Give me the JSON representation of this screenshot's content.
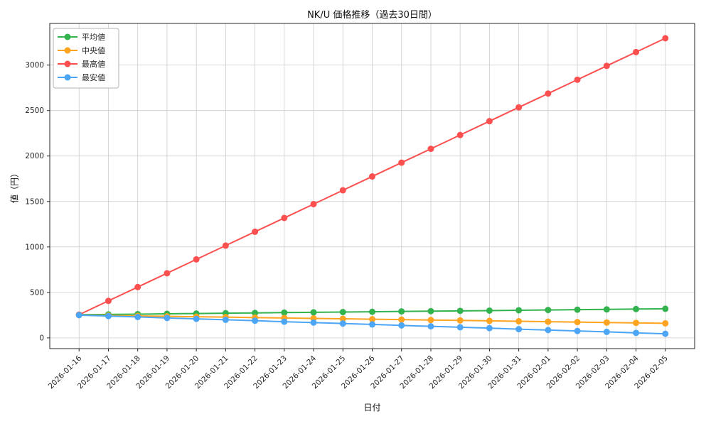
{
  "chart_data": {
    "type": "line",
    "title": "NK/U 価格推移（過去30日間）",
    "xlabel": "日付",
    "ylabel": "値（円）",
    "grid": true,
    "legend_position": "upper-left",
    "background": "#ffffff",
    "ylim": [
      -118,
      3458
    ],
    "yticks": [
      0,
      500,
      1000,
      1500,
      2000,
      2500,
      3000
    ],
    "categories": [
      "2026-01-16",
      "2026-01-17",
      "2026-01-18",
      "2026-01-19",
      "2026-01-20",
      "2026-01-21",
      "2026-01-22",
      "2026-01-23",
      "2026-01-24",
      "2026-01-25",
      "2026-01-26",
      "2026-01-27",
      "2026-01-28",
      "2026-01-29",
      "2026-01-30",
      "2026-01-31",
      "2026-02-01",
      "2026-02-02",
      "2026-02-03",
      "2026-02-04",
      "2026-02-05"
    ],
    "series": [
      {
        "name": "平均値",
        "color": "#33b34e",
        "values": [
          255,
          258,
          261,
          265,
          268,
          271,
          274,
          278,
          281,
          284,
          287,
          291,
          294,
          297,
          300,
          304,
          307,
          310,
          313,
          317,
          320
        ]
      },
      {
        "name": "中央値",
        "color": "#ffa420",
        "values": [
          250,
          246,
          241,
          237,
          232,
          228,
          223,
          219,
          214,
          210,
          205,
          201,
          196,
          192,
          187,
          183,
          178,
          174,
          169,
          165,
          160
        ]
      },
      {
        "name": "最高値",
        "color": "#fc4f4f",
        "values": [
          255,
          407,
          559,
          711,
          863,
          1015,
          1167,
          1319,
          1471,
          1623,
          1775,
          1927,
          2079,
          2231,
          2383,
          2535,
          2687,
          2839,
          2991,
          3143,
          3295
        ]
      },
      {
        "name": "最安値",
        "color": "#4da6f5",
        "values": [
          250,
          240,
          230,
          219,
          209,
          199,
          189,
          178,
          168,
          158,
          148,
          137,
          127,
          117,
          107,
          96,
          86,
          76,
          66,
          55,
          45
        ]
      }
    ]
  }
}
